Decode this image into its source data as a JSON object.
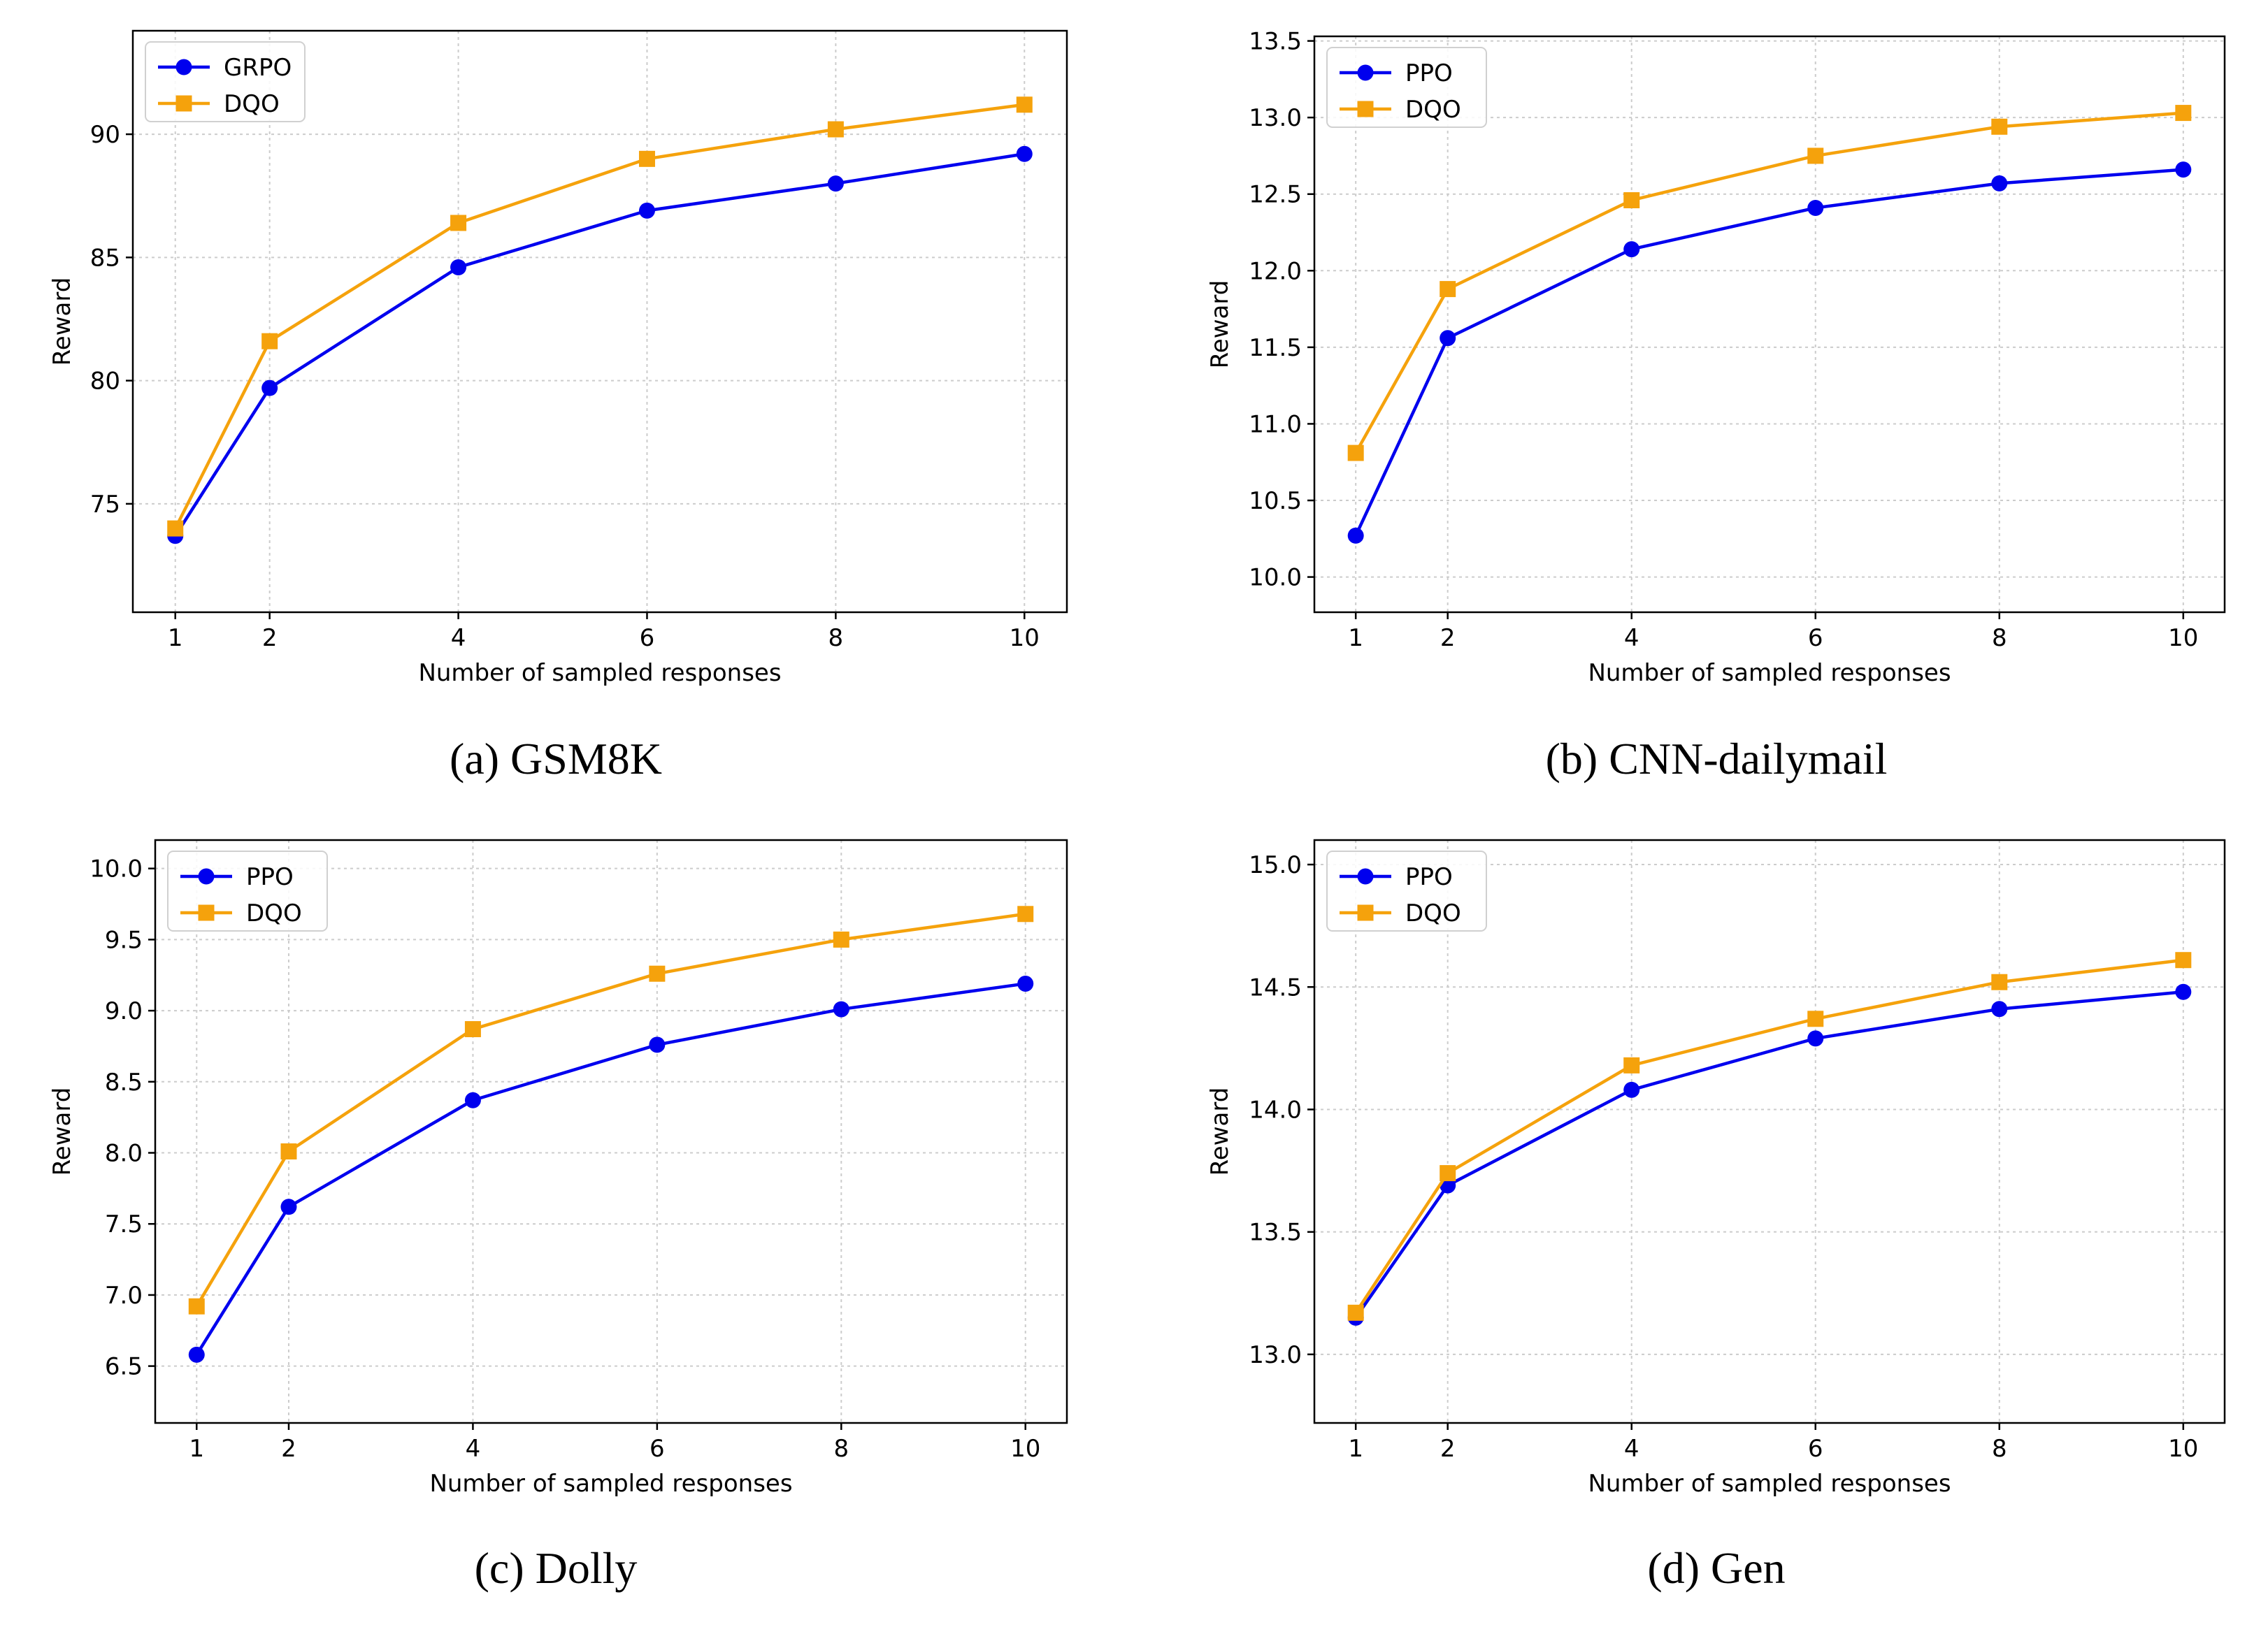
{
  "colors": {
    "blue": "#0000ee",
    "orange": "#f5a20c",
    "grid": "#cccccc",
    "axis": "#000000"
  },
  "chart_data": [
    {
      "type": "line",
      "caption": "(a) GSM8K",
      "xlabel": "Number of sampled responses",
      "ylabel": "Reward",
      "x": [
        1,
        2,
        4,
        6,
        8,
        10
      ],
      "xticks": [
        "1",
        "2",
        "4",
        "6",
        "8",
        "10"
      ],
      "xlim": [
        0.55,
        10.45
      ],
      "ylim": [
        70.6,
        94.2
      ],
      "yticks": [
        "75",
        "80",
        "85",
        "90"
      ],
      "ytick_values": [
        75,
        80,
        85,
        90
      ],
      "legend_position": "top-left",
      "series": [
        {
          "name": "GRPO",
          "color": "blue",
          "marker": "circle",
          "values": [
            73.7,
            79.7,
            84.6,
            86.9,
            88.0,
            89.2
          ]
        },
        {
          "name": "DQO",
          "color": "orange",
          "marker": "square",
          "values": [
            74.0,
            81.6,
            86.4,
            89.0,
            90.2,
            91.2
          ]
        }
      ]
    },
    {
      "type": "line",
      "caption": "(b) CNN-dailymail",
      "xlabel": "Number of sampled responses",
      "ylabel": "Reward",
      "x": [
        1,
        2,
        4,
        6,
        8,
        10
      ],
      "xticks": [
        "1",
        "2",
        "4",
        "6",
        "8",
        "10"
      ],
      "xlim": [
        0.55,
        10.45
      ],
      "ylim": [
        9.77,
        13.53
      ],
      "yticks": [
        "10.0",
        "10.5",
        "11.0",
        "11.5",
        "12.0",
        "12.5",
        "13.0",
        "13.5"
      ],
      "ytick_values": [
        10.0,
        10.5,
        11.0,
        11.5,
        12.0,
        12.5,
        13.0,
        13.5
      ],
      "legend_position": "top-left",
      "series": [
        {
          "name": "PPO",
          "color": "blue",
          "marker": "circle",
          "values": [
            10.27,
            11.56,
            12.14,
            12.41,
            12.57,
            12.66
          ]
        },
        {
          "name": "DQO",
          "color": "orange",
          "marker": "square",
          "values": [
            10.81,
            11.88,
            12.46,
            12.75,
            12.94,
            13.03
          ]
        }
      ]
    },
    {
      "type": "line",
      "caption": "(c) Dolly",
      "xlabel": "Number of sampled responses",
      "ylabel": "Reward",
      "x": [
        1,
        2,
        4,
        6,
        8,
        10
      ],
      "xticks": [
        "1",
        "2",
        "4",
        "6",
        "8",
        "10"
      ],
      "xlim": [
        0.55,
        10.45
      ],
      "ylim": [
        6.1,
        10.2
      ],
      "yticks": [
        "6.5",
        "7.0",
        "7.5",
        "8.0",
        "8.5",
        "9.0",
        "9.5",
        "10.0"
      ],
      "ytick_values": [
        6.5,
        7.0,
        7.5,
        8.0,
        8.5,
        9.0,
        9.5,
        10.0
      ],
      "legend_position": "top-left",
      "series": [
        {
          "name": "PPO",
          "color": "blue",
          "marker": "circle",
          "values": [
            6.58,
            7.62,
            8.37,
            8.76,
            9.01,
            9.19
          ]
        },
        {
          "name": "DQO",
          "color": "orange",
          "marker": "square",
          "values": [
            6.92,
            8.01,
            8.87,
            9.26,
            9.5,
            9.68
          ]
        }
      ]
    },
    {
      "type": "line",
      "caption": "(d) Gen",
      "xlabel": "Number of sampled responses",
      "ylabel": "Reward",
      "x": [
        1,
        2,
        4,
        6,
        8,
        10
      ],
      "xticks": [
        "1",
        "2",
        "4",
        "6",
        "8",
        "10"
      ],
      "xlim": [
        0.55,
        10.45
      ],
      "ylim": [
        12.72,
        15.1
      ],
      "yticks": [
        "13.0",
        "13.5",
        "14.0",
        "14.5",
        "15.0"
      ],
      "ytick_values": [
        13.0,
        13.5,
        14.0,
        14.5,
        15.0
      ],
      "legend_position": "top-left",
      "series": [
        {
          "name": "PPO",
          "color": "blue",
          "marker": "circle",
          "values": [
            13.15,
            13.69,
            14.08,
            14.29,
            14.41,
            14.48
          ]
        },
        {
          "name": "DQO",
          "color": "orange",
          "marker": "square",
          "values": [
            13.17,
            13.74,
            14.18,
            14.37,
            14.52,
            14.61
          ]
        }
      ]
    }
  ]
}
